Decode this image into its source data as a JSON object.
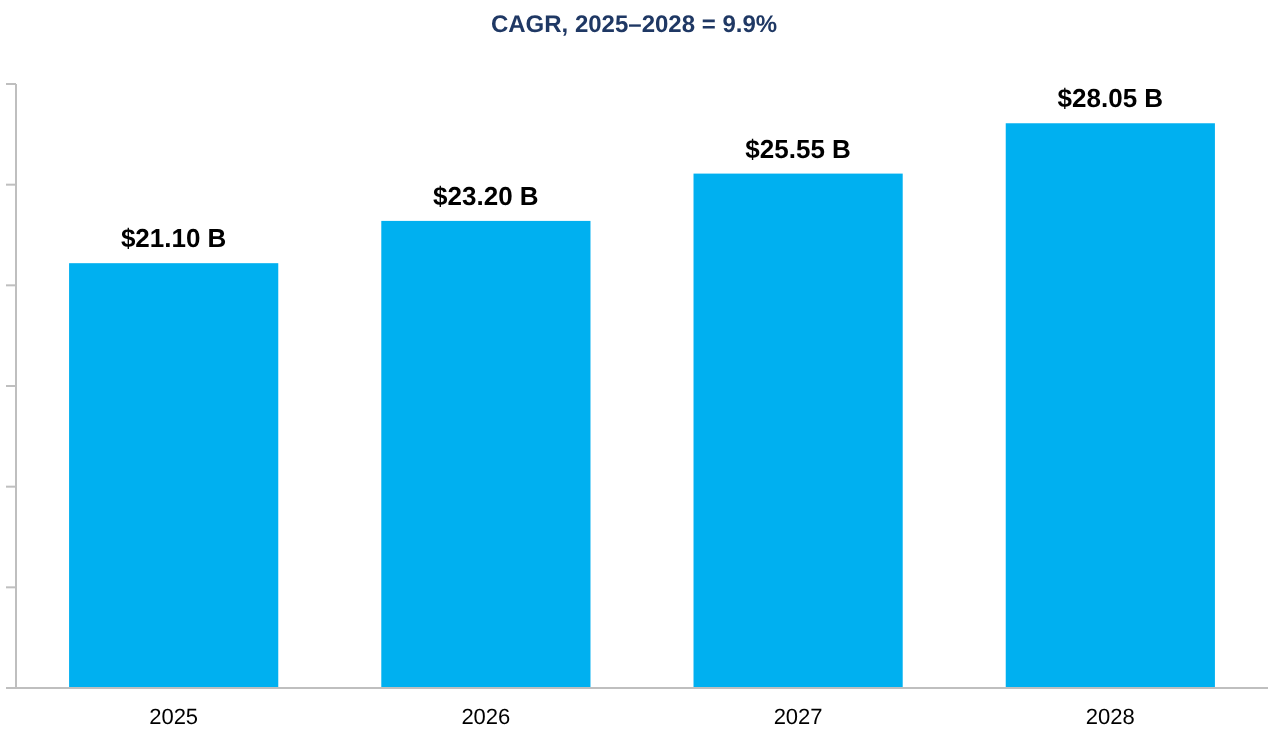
{
  "chart_data": {
    "type": "bar",
    "title": "CAGR, 2025–2028 = 9.9%",
    "categories": [
      "2025",
      "2026",
      "2027",
      "2028"
    ],
    "values": [
      21.1,
      23.2,
      25.55,
      28.05
    ],
    "color": "#00b0f0",
    "value_labels": [
      "$21.10 B",
      "$23.20 B",
      "$25.55 B",
      "$28.05 B"
    ],
    "ylim": [
      0,
      30
    ],
    "yticks": [
      {
        "value": 0,
        "label": null
      },
      {
        "value": 5,
        "label": null
      },
      {
        "value": 10,
        "label": null
      },
      {
        "value": 15,
        "label": null
      },
      {
        "value": 20,
        "label": null
      },
      {
        "value": 25,
        "label": null
      },
      {
        "value": 30,
        "label": null
      }
    ],
    "tick_labels": "x"
  }
}
